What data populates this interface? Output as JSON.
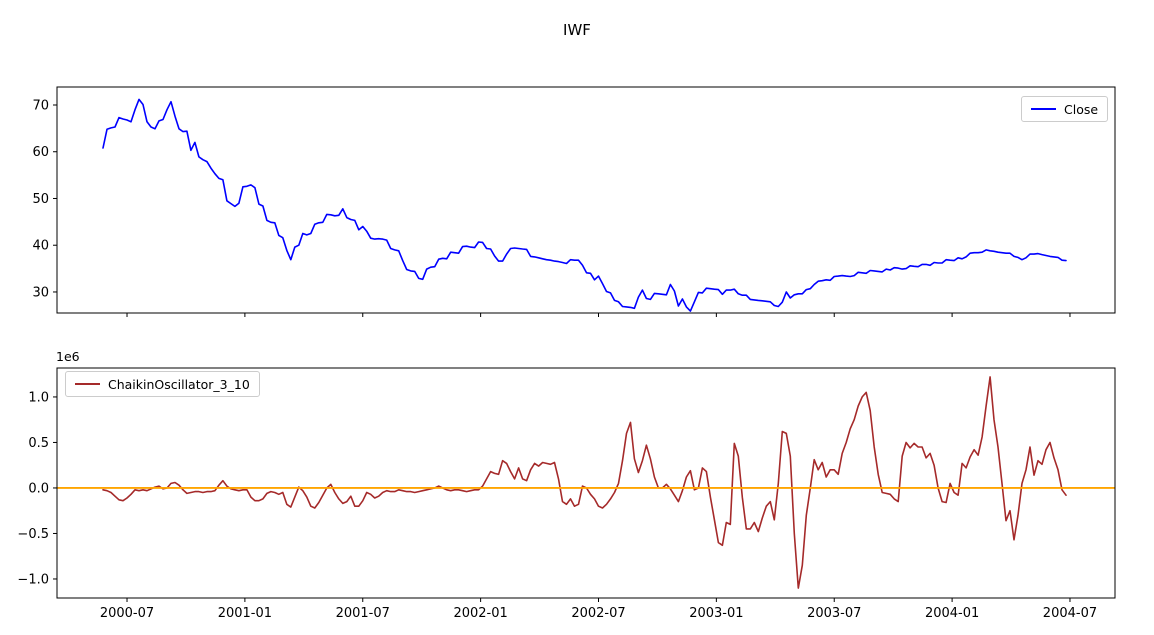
{
  "figure": {
    "title": "IWF"
  },
  "chart_data": [
    {
      "type": "line",
      "title": "IWF",
      "xlim": [
        2000.203,
        2004.691
      ],
      "ylim": [
        25.5,
        73.85
      ],
      "xticks": {
        "values": [
          2000.5,
          2001.0,
          2001.5,
          2002.0,
          2002.5,
          2003.0,
          2003.5,
          2004.0,
          2004.5
        ],
        "labels": [
          "2000-07",
          "2001-01",
          "2001-07",
          "2002-01",
          "2002-07",
          "2003-01",
          "2003-07",
          "2004-01",
          "2004-07"
        ],
        "show_labels": false
      },
      "yticks": {
        "values": [
          30,
          40,
          50,
          60,
          70
        ],
        "labels": [
          "30",
          "40",
          "50",
          "60",
          "70"
        ]
      },
      "grid": false,
      "legend_loc": "upper right",
      "series": [
        {
          "name": "Close",
          "color": "#0000ff",
          "x0": 2000.3983,
          "dx": 0.016949,
          "values": [
            60.8,
            64.8,
            65.1,
            65.3,
            67.3,
            67.0,
            66.8,
            66.4,
            69.0,
            71.2,
            70.1,
            66.4,
            65.3,
            64.9,
            66.6,
            66.9,
            69.0,
            70.7,
            67.6,
            64.9,
            64.3,
            64.4,
            60.3,
            62.0,
            58.9,
            58.3,
            57.9,
            56.5,
            55.3,
            54.3,
            54.0,
            49.5,
            48.9,
            48.3,
            49.0,
            52.5,
            52.6,
            52.9,
            52.3,
            48.8,
            48.4,
            45.3,
            44.9,
            44.8,
            42.1,
            41.6,
            38.9,
            36.9,
            39.6,
            40.0,
            42.5,
            42.2,
            42.5,
            44.5,
            44.8,
            44.9,
            46.6,
            46.5,
            46.3,
            46.4,
            47.8,
            45.9,
            45.5,
            45.3,
            43.3,
            44.0,
            43.0,
            41.5,
            41.3,
            41.4,
            41.3,
            41.1,
            39.3,
            39.0,
            38.8,
            36.7,
            34.8,
            34.5,
            34.4,
            32.9,
            32.7,
            34.9,
            35.3,
            35.4,
            37.0,
            37.2,
            37.1,
            38.5,
            38.4,
            38.3,
            39.7,
            39.8,
            39.6,
            39.5,
            40.7,
            40.6,
            39.3,
            39.2,
            37.7,
            36.6,
            36.6,
            38.1,
            39.3,
            39.4,
            39.3,
            39.2,
            39.1,
            37.6,
            37.5,
            37.3,
            37.1,
            36.9,
            36.8,
            36.6,
            36.5,
            36.3,
            36.1,
            36.9,
            36.8,
            36.8,
            35.7,
            34.1,
            34.0,
            32.6,
            33.4,
            31.8,
            30.1,
            29.8,
            28.2,
            27.9,
            26.9,
            26.8,
            26.7,
            26.5,
            28.9,
            30.4,
            28.6,
            28.4,
            29.7,
            29.6,
            29.5,
            29.4,
            31.6,
            30.2,
            27.0,
            28.5,
            26.8,
            25.9,
            27.9,
            29.9,
            29.8,
            30.8,
            30.7,
            30.6,
            30.5,
            29.5,
            30.4,
            30.4,
            30.6,
            29.6,
            29.3,
            29.3,
            28.4,
            28.3,
            28.2,
            28.1,
            28.0,
            27.9,
            27.1,
            26.9,
            27.8,
            30.0,
            28.7,
            29.4,
            29.6,
            29.6,
            30.5,
            30.7,
            31.6,
            32.3,
            32.4,
            32.6,
            32.5,
            33.3,
            33.4,
            33.5,
            33.4,
            33.3,
            33.5,
            34.2,
            34.1,
            34.0,
            34.6,
            34.5,
            34.4,
            34.3,
            34.9,
            34.7,
            35.2,
            35.1,
            34.9,
            35.0,
            35.6,
            35.5,
            35.4,
            35.9,
            35.9,
            35.7,
            36.3,
            36.2,
            36.2,
            36.9,
            36.8,
            36.7,
            37.3,
            37.1,
            37.5,
            38.3,
            38.4,
            38.4,
            38.5,
            39.0,
            38.8,
            38.7,
            38.5,
            38.4,
            38.3,
            38.3,
            37.6,
            37.4,
            36.9,
            37.3,
            38.1,
            38.1,
            38.2,
            38.0,
            37.8,
            37.6,
            37.5,
            37.4,
            36.8,
            36.7
          ]
        }
      ]
    },
    {
      "type": "line",
      "title": "",
      "unit_multiplier": "1e6",
      "xlim": [
        2000.203,
        2004.691
      ],
      "ylim": [
        -1.209,
        1.318
      ],
      "xticks": {
        "values": [
          2000.5,
          2001.0,
          2001.5,
          2002.0,
          2002.5,
          2003.0,
          2003.5,
          2004.0,
          2004.5
        ],
        "labels": [
          "2000-07",
          "2001-01",
          "2001-07",
          "2002-01",
          "2002-07",
          "2003-01",
          "2003-07",
          "2004-01",
          "2004-07"
        ],
        "show_labels": true
      },
      "yticks": {
        "values": [
          -1.0,
          -0.5,
          0.0,
          0.5,
          1.0
        ],
        "labels": [
          "−1.0",
          "−0.5",
          "0.0",
          "0.5",
          "1.0"
        ]
      },
      "grid": false,
      "legend_loc": "upper left",
      "hline": {
        "y": 0.0,
        "color": "#ffa500"
      },
      "series": [
        {
          "name": "ChaikinOscillator_3_10",
          "color": "#a52a2a",
          "x0": 2000.3983,
          "dx": 0.016949,
          "values": [
            -0.02,
            -0.03,
            -0.05,
            -0.09,
            -0.13,
            -0.14,
            -0.11,
            -0.07,
            -0.02,
            -0.03,
            -0.02,
            -0.03,
            -0.01,
            0.01,
            0.02,
            -0.01,
            0.0,
            0.05,
            0.06,
            0.03,
            -0.02,
            -0.06,
            -0.05,
            -0.04,
            -0.04,
            -0.05,
            -0.04,
            -0.04,
            -0.03,
            0.03,
            0.08,
            0.02,
            -0.01,
            -0.02,
            -0.03,
            -0.02,
            -0.02,
            -0.1,
            -0.14,
            -0.14,
            -0.12,
            -0.06,
            -0.04,
            -0.05,
            -0.07,
            -0.05,
            -0.18,
            -0.21,
            -0.1,
            0.01,
            -0.03,
            -0.1,
            -0.2,
            -0.22,
            -0.16,
            -0.08,
            0.0,
            0.04,
            -0.05,
            -0.12,
            -0.17,
            -0.15,
            -0.09,
            -0.2,
            -0.2,
            -0.14,
            -0.05,
            -0.07,
            -0.11,
            -0.09,
            -0.05,
            -0.03,
            -0.04,
            -0.04,
            -0.02,
            -0.03,
            -0.04,
            -0.04,
            -0.05,
            -0.04,
            -0.03,
            -0.02,
            -0.01,
            0.0,
            0.02,
            0.0,
            -0.02,
            -0.03,
            -0.02,
            -0.02,
            -0.03,
            -0.04,
            -0.03,
            -0.02,
            -0.02,
            0.02,
            0.1,
            0.18,
            0.16,
            0.15,
            0.3,
            0.27,
            0.18,
            0.1,
            0.22,
            0.1,
            0.08,
            0.2,
            0.27,
            0.24,
            0.28,
            0.27,
            0.26,
            0.28,
            0.1,
            -0.15,
            -0.18,
            -0.12,
            -0.2,
            -0.18,
            0.02,
            0.0,
            -0.07,
            -0.12,
            -0.2,
            -0.22,
            -0.18,
            -0.12,
            -0.05,
            0.05,
            0.3,
            0.6,
            0.72,
            0.32,
            0.17,
            0.3,
            0.47,
            0.32,
            0.12,
            0.0,
            0.0,
            0.04,
            -0.01,
            -0.08,
            -0.15,
            -0.03,
            0.12,
            0.19,
            -0.02,
            0.0,
            0.22,
            0.18,
            -0.1,
            -0.35,
            -0.6,
            -0.63,
            -0.38,
            -0.4,
            0.49,
            0.35,
            -0.1,
            -0.45,
            -0.45,
            -0.38,
            -0.48,
            -0.33,
            -0.2,
            -0.15,
            -0.35,
            0.05,
            0.62,
            0.6,
            0.35,
            -0.5,
            -1.1,
            -0.85,
            -0.3,
            0.0,
            0.31,
            0.2,
            0.28,
            0.12,
            0.2,
            0.2,
            0.15,
            0.38,
            0.5,
            0.65,
            0.75,
            0.9,
            1.0,
            1.05,
            0.85,
            0.45,
            0.15,
            -0.05,
            -0.06,
            -0.07,
            -0.12,
            -0.15,
            0.35,
            0.5,
            0.44,
            0.49,
            0.45,
            0.45,
            0.33,
            0.38,
            0.25,
            0.0,
            -0.15,
            -0.16,
            0.05,
            -0.05,
            -0.08,
            0.27,
            0.22,
            0.34,
            0.42,
            0.36,
            0.56,
            0.9,
            1.22,
            0.75,
            0.45,
            0.05,
            -0.36,
            -0.25,
            -0.57,
            -0.3,
            0.05,
            0.2,
            0.45,
            0.14,
            0.3,
            0.26,
            0.42,
            0.5,
            0.33,
            0.2,
            -0.02,
            -0.08
          ]
        }
      ]
    }
  ],
  "legend1": {
    "label": "Close"
  },
  "legend2": {
    "label": "ChaikinOscillator_3_10"
  },
  "offset_text": "1e6"
}
